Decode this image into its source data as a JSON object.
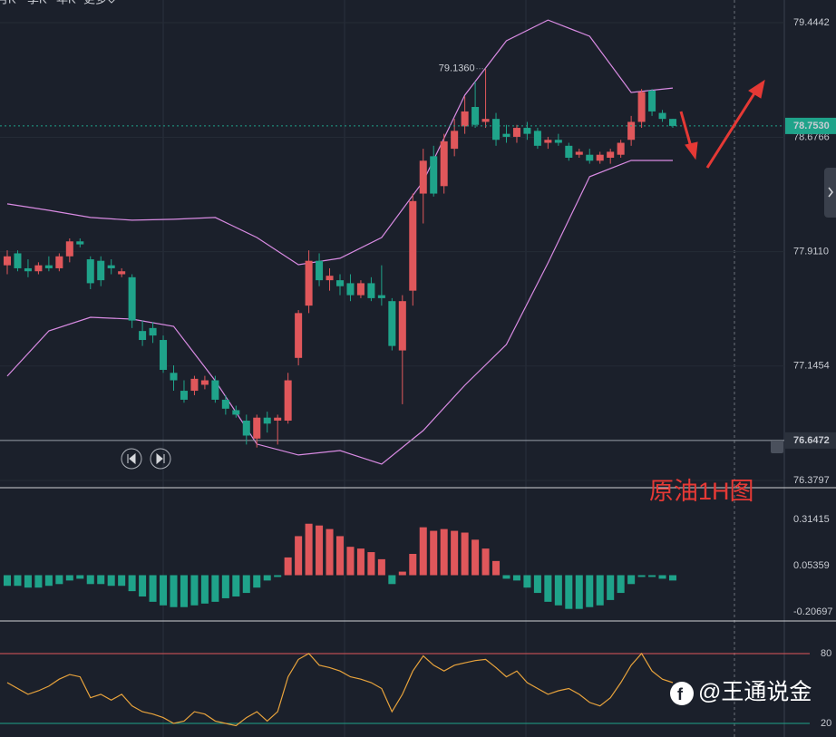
{
  "toolbar": [
    "月K",
    "季K",
    "年K",
    "更多"
  ],
  "annotation": "原油1H图",
  "watermark": "@王通说金",
  "chart_data": [
    {
      "type": "candlestick",
      "up_color": "#e0575b",
      "down_color": "#1fa38a",
      "ylim": [
        76.331,
        79.596
      ],
      "yticks": [
        79.4442,
        78.6766,
        {
          "value": 77.911,
          "label": "77.9110"
        },
        77.1454,
        76.3797
      ],
      "last_price": {
        "value": 78.753,
        "label": "78.7530"
      },
      "marker_line": {
        "value": 76.6472,
        "label": "76.6472"
      },
      "high_label": {
        "value": 79.136,
        "label": "79.1360"
      },
      "open": [
        77.82,
        77.9,
        77.8,
        77.78,
        77.82,
        77.8,
        77.88,
        77.98,
        77.86,
        77.85,
        77.82,
        77.76,
        77.74,
        77.38,
        77.4,
        77.32,
        77.1,
        76.98,
        76.98,
        77.02,
        77.05,
        76.92,
        76.85,
        76.78,
        76.66,
        76.8,
        76.78,
        76.78,
        77.2,
        77.55,
        77.85,
        77.72,
        77.72,
        77.7,
        77.62,
        77.7,
        77.62,
        77.58,
        77.25,
        77.65,
        78.3,
        78.55,
        78.35,
        78.6,
        78.75,
        78.88,
        78.78,
        78.8,
        78.7,
        78.68,
        78.74,
        78.72,
        78.64,
        78.66,
        78.62,
        78.56,
        78.56,
        78.52,
        78.54,
        78.56,
        78.66,
        78.78,
        78.99,
        78.84,
        78.8
      ],
      "high": [
        77.92,
        77.92,
        77.86,
        77.84,
        77.88,
        77.9,
        78.0,
        78.0,
        77.88,
        77.88,
        77.86,
        77.8,
        77.76,
        77.45,
        77.44,
        77.35,
        77.15,
        77.05,
        77.08,
        77.08,
        77.08,
        76.95,
        76.88,
        76.82,
        76.82,
        76.84,
        76.82,
        77.1,
        77.52,
        77.92,
        77.9,
        77.8,
        77.76,
        77.76,
        77.72,
        77.74,
        77.82,
        77.6,
        77.62,
        78.3,
        78.6,
        78.62,
        78.7,
        78.8,
        78.95,
        79.05,
        79.136,
        78.84,
        78.76,
        78.76,
        78.78,
        78.74,
        78.68,
        78.7,
        78.64,
        78.6,
        78.6,
        78.58,
        78.6,
        78.66,
        78.82,
        79.0,
        79.0,
        78.86,
        78.8
      ],
      "low": [
        77.76,
        77.78,
        77.74,
        77.76,
        77.78,
        77.78,
        77.84,
        77.94,
        77.66,
        77.68,
        77.76,
        77.74,
        77.4,
        77.28,
        77.3,
        77.1,
        76.98,
        76.9,
        76.95,
        76.99,
        76.9,
        76.82,
        76.8,
        76.62,
        76.6,
        76.7,
        76.62,
        76.76,
        77.15,
        77.5,
        77.68,
        77.65,
        77.62,
        77.58,
        77.6,
        77.58,
        77.55,
        77.25,
        76.89,
        77.55,
        78.1,
        78.28,
        78.3,
        78.55,
        78.7,
        78.74,
        78.74,
        78.62,
        78.64,
        78.64,
        78.66,
        78.6,
        78.6,
        78.62,
        78.52,
        78.54,
        78.5,
        78.5,
        78.5,
        78.54,
        78.62,
        78.74,
        78.82,
        78.78,
        78.74
      ],
      "close": [
        77.88,
        77.8,
        77.78,
        77.82,
        77.8,
        77.88,
        77.98,
        77.96,
        77.7,
        77.72,
        77.8,
        77.78,
        77.45,
        77.32,
        77.35,
        77.12,
        77.05,
        76.92,
        77.06,
        77.05,
        76.92,
        76.86,
        76.82,
        76.68,
        76.8,
        76.76,
        76.8,
        77.05,
        77.5,
        77.85,
        77.72,
        77.75,
        77.68,
        77.62,
        77.7,
        77.6,
        77.6,
        77.28,
        77.58,
        78.25,
        78.52,
        78.3,
        78.65,
        78.72,
        78.85,
        78.76,
        78.8,
        78.66,
        78.68,
        78.74,
        78.7,
        78.62,
        78.66,
        78.64,
        78.54,
        78.58,
        78.52,
        78.56,
        78.58,
        78.64,
        78.78,
        78.98,
        78.85,
        78.8,
        78.753
      ],
      "bands": [
        {
          "color": "#d98be3",
          "x": [
            0,
            4,
            8,
            12,
            16,
            20,
            24,
            28,
            32,
            36,
            40,
            44,
            48,
            52,
            56,
            60,
            64
          ],
          "values": [
            78.231,
            78.188,
            78.14,
            78.122,
            78.128,
            78.14,
            78.006,
            77.824,
            77.867,
            78.006,
            78.382,
            78.959,
            79.323,
            79.462,
            79.353,
            78.977,
            79.007
          ]
        },
        {
          "color": "#d98be3",
          "x": [
            0,
            4,
            8,
            12,
            16,
            20,
            24,
            28,
            32,
            36,
            40,
            44,
            48,
            52,
            56,
            60,
            64
          ],
          "values": [
            77.078,
            77.381,
            77.472,
            77.46,
            77.411,
            77.047,
            76.623,
            76.55,
            76.58,
            76.489,
            76.714,
            77.017,
            77.29,
            77.836,
            78.413,
            78.522,
            78.522
          ]
        }
      ]
    },
    {
      "type": "bar",
      "up_color": "#e0575b",
      "down_color": "#1fa38a",
      "ylim": [
        -0.258,
        0.493
      ],
      "yticks": [
        0.31415,
        0.05359,
        -0.20697
      ],
      "values": [
        -0.06,
        -0.06,
        -0.07,
        -0.07,
        -0.06,
        -0.05,
        -0.03,
        -0.02,
        -0.05,
        -0.05,
        -0.06,
        -0.06,
        -0.09,
        -0.12,
        -0.15,
        -0.17,
        -0.18,
        -0.18,
        -0.17,
        -0.16,
        -0.15,
        -0.13,
        -0.12,
        -0.1,
        -0.07,
        -0.03,
        -0.01,
        0.1,
        0.22,
        0.29,
        0.28,
        0.26,
        0.22,
        0.16,
        0.15,
        0.13,
        0.09,
        -0.05,
        0.02,
        0.12,
        0.27,
        0.25,
        0.26,
        0.25,
        0.24,
        0.2,
        0.15,
        0.08,
        -0.02,
        -0.03,
        -0.07,
        -0.1,
        -0.15,
        -0.17,
        -0.19,
        -0.19,
        -0.18,
        -0.17,
        -0.14,
        -0.1,
        -0.05,
        -0.01,
        -0.01,
        -0.02,
        -0.03
      ]
    },
    {
      "type": "line",
      "ylim": [
        8.3,
        108
      ],
      "yticks": [
        80,
        20
      ],
      "level_colors": [
        "#e0575b",
        "#1fa38a"
      ],
      "series": [
        {
          "color": "#e8a33c",
          "values": [
            55,
            50,
            45,
            48,
            52,
            58,
            62,
            60,
            42,
            45,
            40,
            45,
            35,
            30,
            28,
            25,
            20,
            22,
            30,
            28,
            22,
            20,
            18,
            25,
            30,
            22,
            30,
            60,
            75,
            80,
            70,
            68,
            65,
            60,
            58,
            55,
            50,
            30,
            45,
            65,
            78,
            70,
            65,
            70,
            72,
            74,
            75,
            68,
            60,
            65,
            55,
            50,
            45,
            48,
            50,
            45,
            38,
            35,
            42,
            55,
            70,
            80,
            65,
            58,
            55
          ]
        }
      ]
    }
  ]
}
